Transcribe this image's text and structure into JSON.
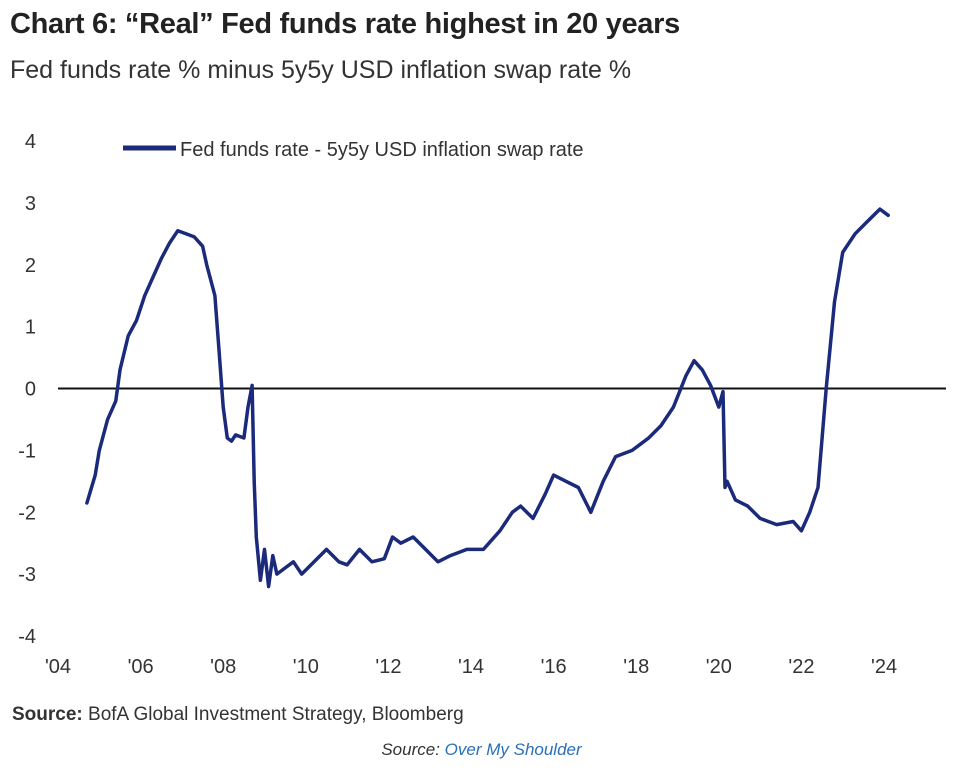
{
  "title": "Chart 6: “Real” Fed funds rate highest in 20 years",
  "subtitle": "Fed funds rate % minus 5y5y USD inflation swap rate %",
  "source": {
    "label": "Source:",
    "text": "BofA Global Investment Strategy, Bloomberg"
  },
  "credit": {
    "label": "Source:",
    "link_text": "Over My Shoulder"
  },
  "colors": {
    "series": "#1b2a7a",
    "zero_line": "#111111",
    "text": "#333333",
    "link": "#2a6fb8"
  },
  "chart_data": {
    "type": "line",
    "xlabel": "",
    "ylabel": "",
    "xlim": [
      2004,
      2025.5
    ],
    "ylim": [
      -4,
      4
    ],
    "x_ticks": [
      2004,
      2006,
      2008,
      2010,
      2012,
      2014,
      2016,
      2018,
      2020,
      2022,
      2024
    ],
    "x_tick_labels": [
      "'04",
      "'06",
      "'08",
      "'10",
      "'12",
      "'14",
      "'16",
      "'18",
      "'20",
      "'22",
      "'24"
    ],
    "y_ticks": [
      4,
      3,
      2,
      1,
      0,
      -1,
      -2,
      -3,
      -4
    ],
    "y_tick_labels": [
      "4",
      "3",
      "2",
      "1",
      "0",
      "-1",
      "-2",
      "-3",
      "-4"
    ],
    "grid": false,
    "reference_line": 0,
    "legend_position": "top-left",
    "series": [
      {
        "name": "Fed funds rate - 5y5y USD inflation swap rate",
        "x": [
          2004.7,
          2004.9,
          2005.0,
          2005.2,
          2005.4,
          2005.5,
          2005.7,
          2005.9,
          2006.1,
          2006.3,
          2006.5,
          2006.7,
          2006.9,
          2007.1,
          2007.3,
          2007.5,
          2007.6,
          2007.7,
          2007.8,
          2007.9,
          2008.0,
          2008.1,
          2008.2,
          2008.3,
          2008.5,
          2008.6,
          2008.7,
          2008.75,
          2008.8,
          2008.9,
          2009.0,
          2009.1,
          2009.2,
          2009.3,
          2009.5,
          2009.7,
          2009.9,
          2010.2,
          2010.5,
          2010.8,
          2011.0,
          2011.3,
          2011.6,
          2011.9,
          2012.1,
          2012.3,
          2012.6,
          2012.9,
          2013.2,
          2013.5,
          2013.9,
          2014.3,
          2014.7,
          2015.0,
          2015.2,
          2015.5,
          2015.8,
          2016.0,
          2016.3,
          2016.6,
          2016.9,
          2017.2,
          2017.5,
          2017.9,
          2018.1,
          2018.3,
          2018.6,
          2018.9,
          2019.2,
          2019.4,
          2019.6,
          2019.8,
          2020.0,
          2020.1,
          2020.15,
          2020.2,
          2020.4,
          2020.7,
          2021.0,
          2021.4,
          2021.8,
          2022.0,
          2022.2,
          2022.4,
          2022.6,
          2022.8,
          2023.0,
          2023.3,
          2023.6,
          2023.9,
          2024.1
        ],
        "y": [
          -1.85,
          -1.4,
          -1.0,
          -0.5,
          -0.2,
          0.3,
          0.85,
          1.1,
          1.5,
          1.8,
          2.1,
          2.35,
          2.55,
          2.5,
          2.45,
          2.3,
          2.0,
          1.75,
          1.5,
          0.6,
          -0.3,
          -0.8,
          -0.85,
          -0.75,
          -0.8,
          -0.3,
          0.05,
          -1.5,
          -2.4,
          -3.1,
          -2.6,
          -3.2,
          -2.7,
          -3.0,
          -2.9,
          -2.8,
          -3.0,
          -2.8,
          -2.6,
          -2.8,
          -2.85,
          -2.6,
          -2.8,
          -2.75,
          -2.4,
          -2.5,
          -2.4,
          -2.6,
          -2.8,
          -2.7,
          -2.6,
          -2.6,
          -2.3,
          -2.0,
          -1.9,
          -2.1,
          -1.7,
          -1.4,
          -1.5,
          -1.6,
          -2.0,
          -1.5,
          -1.1,
          -1.0,
          -0.9,
          -0.8,
          -0.6,
          -0.3,
          0.2,
          0.45,
          0.3,
          0.05,
          -0.3,
          -0.05,
          -1.6,
          -1.5,
          -1.8,
          -1.9,
          -2.1,
          -2.2,
          -2.15,
          -2.3,
          -2.0,
          -1.6,
          0.0,
          1.4,
          2.2,
          2.5,
          2.7,
          2.9,
          2.8
        ]
      }
    ]
  }
}
